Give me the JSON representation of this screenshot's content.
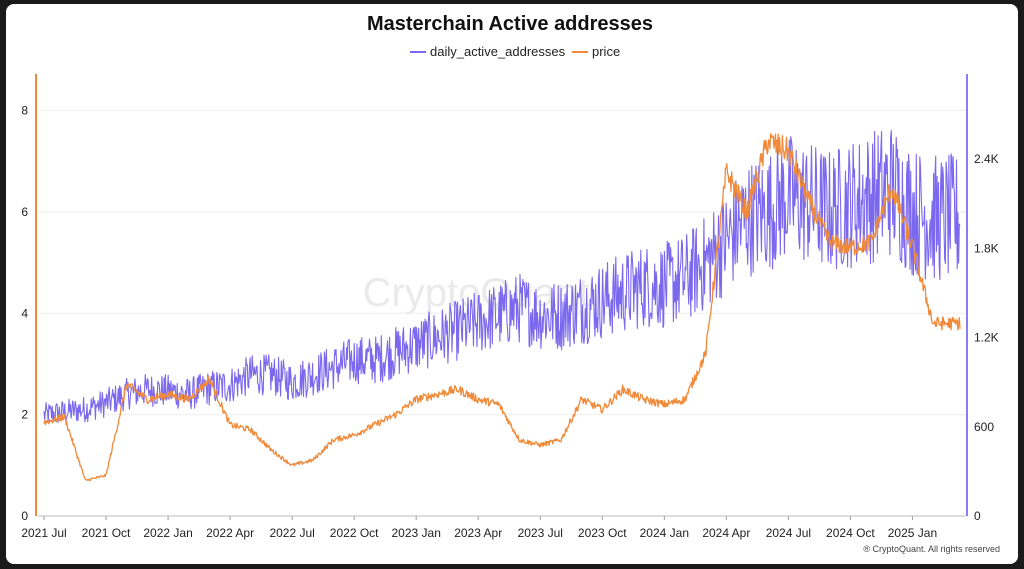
{
  "chart_data": {
    "type": "line",
    "title": "Masterchain Active addresses",
    "watermark": "CryptoQuant",
    "credit": "® CryptoQuant. All rights reserved",
    "x_ticks": [
      "2021 Jul",
      "2021 Oct",
      "2022 Jan",
      "2022 Apr",
      "2022 Jul",
      "2022 Oct",
      "2023 Jan",
      "2023 Apr",
      "2023 Jul",
      "2023 Oct",
      "2024 Jan",
      "2024 Apr",
      "2024 Jul",
      "2024 Oct",
      "2025 Jan"
    ],
    "left_axis": {
      "ticks": [
        "0",
        "2",
        "4",
        "6",
        "8"
      ],
      "range": [
        0,
        8.8
      ],
      "color": "#f08a3a"
    },
    "right_axis": {
      "ticks": [
        "0",
        "600",
        "1.2K",
        "1.8K",
        "2.4K"
      ],
      "range": [
        0,
        3000
      ],
      "color": "#8b7cf6"
    },
    "series": [
      {
        "name": "daily_active_addresses",
        "axis": "right",
        "color": "#7b68ee",
        "anchors": [
          [
            "2021 Jul",
            680
          ],
          [
            "2021 Aug",
            700
          ],
          [
            "2021 Sep",
            720
          ],
          [
            "2021 Oct",
            760
          ],
          [
            "2021 Nov",
            820
          ],
          [
            "2021 Dec",
            850
          ],
          [
            "2022 Jan",
            840
          ],
          [
            "2022 Feb",
            820
          ],
          [
            "2022 Mar",
            860
          ],
          [
            "2022 Apr",
            880
          ],
          [
            "2022 May",
            950
          ],
          [
            "2022 Jun",
            950
          ],
          [
            "2022 Jul",
            900
          ],
          [
            "2022 Aug",
            950
          ],
          [
            "2022 Sep",
            1000
          ],
          [
            "2022 Oct",
            1050
          ],
          [
            "2022 Nov",
            1050
          ],
          [
            "2022 Dec",
            1100
          ],
          [
            "2023 Jan",
            1150
          ],
          [
            "2023 Feb",
            1200
          ],
          [
            "2023 Mar",
            1250
          ],
          [
            "2023 Apr",
            1300
          ],
          [
            "2023 May",
            1350
          ],
          [
            "2023 Jun",
            1400
          ],
          [
            "2023 Jul",
            1350
          ],
          [
            "2023 Aug",
            1350
          ],
          [
            "2023 Sep",
            1400
          ],
          [
            "2023 Oct",
            1450
          ],
          [
            "2023 Nov",
            1500
          ],
          [
            "2023 Dec",
            1550
          ],
          [
            "2024 Jan",
            1550
          ],
          [
            "2024 Feb",
            1600
          ],
          [
            "2024 Mar",
            1700
          ],
          [
            "2024 Apr",
            1850
          ],
          [
            "2024 May",
            2000
          ],
          [
            "2024 Jun",
            2050
          ],
          [
            "2024 Jul",
            2150
          ],
          [
            "2024 Aug",
            2100
          ],
          [
            "2024 Sep",
            2050
          ],
          [
            "2024 Oct",
            2100
          ],
          [
            "2024 Nov",
            2150
          ],
          [
            "2024 Dec",
            2200
          ],
          [
            "2025 Jan",
            2050
          ],
          [
            "2025 Feb",
            2000
          ]
        ]
      },
      {
        "name": "price",
        "axis": "left",
        "color": "#f08a3a",
        "anchors": [
          [
            "2021 Jul",
            1.85
          ],
          [
            "2021 Aug",
            1.95
          ],
          [
            "2021 Sep",
            0.7
          ],
          [
            "2021 Oct",
            0.8
          ],
          [
            "2021 Nov",
            2.6
          ],
          [
            "2021 Dec",
            2.3
          ],
          [
            "2022 Jan",
            2.4
          ],
          [
            "2022 Feb",
            2.3
          ],
          [
            "2022 Mar",
            2.7
          ],
          [
            "2022 Apr",
            1.8
          ],
          [
            "2022 May",
            1.7
          ],
          [
            "2022 Jun",
            1.3
          ],
          [
            "2022 Jul",
            1.0
          ],
          [
            "2022 Aug",
            1.1
          ],
          [
            "2022 Sep",
            1.5
          ],
          [
            "2022 Oct",
            1.6
          ],
          [
            "2022 Nov",
            1.8
          ],
          [
            "2022 Dec",
            2.0
          ],
          [
            "2023 Jan",
            2.3
          ],
          [
            "2023 Feb",
            2.4
          ],
          [
            "2023 Mar",
            2.5
          ],
          [
            "2023 Apr",
            2.3
          ],
          [
            "2023 May",
            2.2
          ],
          [
            "2023 Jun",
            1.5
          ],
          [
            "2023 Jul",
            1.4
          ],
          [
            "2023 Aug",
            1.5
          ],
          [
            "2023 Sep",
            2.3
          ],
          [
            "2023 Oct",
            2.1
          ],
          [
            "2023 Nov",
            2.5
          ],
          [
            "2023 Dec",
            2.3
          ],
          [
            "2024 Jan",
            2.2
          ],
          [
            "2024 Feb",
            2.3
          ],
          [
            "2024 Mar",
            3.2
          ],
          [
            "2024 Apr",
            6.8
          ],
          [
            "2024 May",
            6.0
          ],
          [
            "2024 Jun",
            7.4
          ],
          [
            "2024 Jul",
            7.2
          ],
          [
            "2024 Aug",
            6.2
          ],
          [
            "2024 Sep",
            5.4
          ],
          [
            "2024 Oct",
            5.3
          ],
          [
            "2024 Nov",
            5.4
          ],
          [
            "2024 Dec",
            6.5
          ],
          [
            "2025 Jan",
            5.3
          ],
          [
            "2025 Feb",
            3.8
          ]
        ]
      }
    ],
    "legend_position": "top-center",
    "grid": true
  }
}
